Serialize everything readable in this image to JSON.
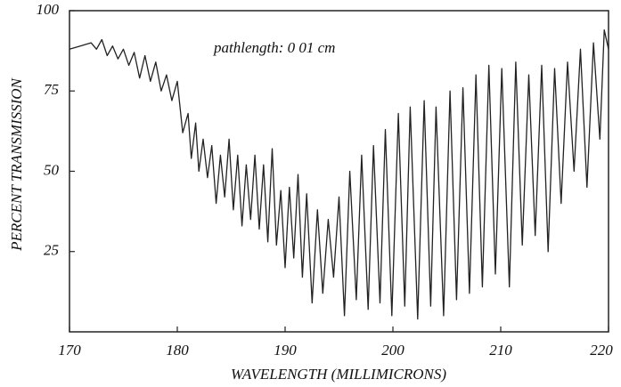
{
  "chart_data": {
    "type": "line",
    "annotation": "pathlength: 0 01 cm",
    "x_label": "WAVELENGTH (MILLIMICRONS)",
    "y_label": "PERCENT TRANSMISSION",
    "xlim": [
      170,
      220
    ],
    "xticks": [
      170,
      180,
      190,
      200,
      210,
      220
    ],
    "ylim": [
      0,
      100
    ],
    "yticks": [
      25,
      50,
      75,
      100
    ],
    "color": "#222222",
    "x": [
      170,
      171,
      172,
      172.5,
      173,
      173.5,
      174,
      174.5,
      175,
      175.5,
      176,
      176.5,
      177,
      177.5,
      178,
      178.5,
      179,
      179.5,
      180,
      180.5,
      181,
      181.3,
      181.7,
      182,
      182.4,
      182.8,
      183.2,
      183.6,
      184,
      184.4,
      184.8,
      185.2,
      185.6,
      186,
      186.4,
      186.8,
      187.2,
      187.6,
      188,
      188.4,
      188.8,
      189.2,
      189.6,
      190,
      190.4,
      190.8,
      191.2,
      191.6,
      192,
      192.5,
      193,
      193.5,
      194,
      194.5,
      195,
      195.5,
      196,
      196.6,
      197.1,
      197.7,
      198.2,
      198.8,
      199.3,
      199.9,
      200.5,
      201.1,
      201.6,
      202.3,
      202.9,
      203.5,
      204,
      204.7,
      205.3,
      205.9,
      206.5,
      207.1,
      207.7,
      208.3,
      208.9,
      209.5,
      210.1,
      210.8,
      211.4,
      212,
      212.6,
      213.2,
      213.8,
      214.4,
      215,
      215.6,
      216.2,
      216.8,
      217.4,
      218,
      218.6,
      219.2,
      219.6,
      220
    ],
    "values": [
      88,
      89,
      90,
      88,
      91,
      86,
      89,
      85,
      88,
      83,
      87,
      79,
      86,
      78,
      84,
      75,
      80,
      72,
      78,
      62,
      68,
      54,
      65,
      50,
      60,
      48,
      58,
      40,
      55,
      42,
      60,
      38,
      55,
      33,
      52,
      35,
      55,
      32,
      52,
      28,
      57,
      27,
      44,
      20,
      45,
      23,
      49,
      17,
      43,
      9,
      38,
      12,
      35,
      17,
      42,
      5,
      50,
      10,
      55,
      7,
      58,
      9,
      63,
      5,
      68,
      8,
      70,
      4,
      72,
      8,
      70,
      5,
      75,
      10,
      76,
      12,
      80,
      14,
      83,
      18,
      82,
      14,
      84,
      27,
      80,
      30,
      83,
      25,
      82,
      40,
      84,
      50,
      88,
      45,
      90,
      60,
      94,
      88
    ]
  }
}
